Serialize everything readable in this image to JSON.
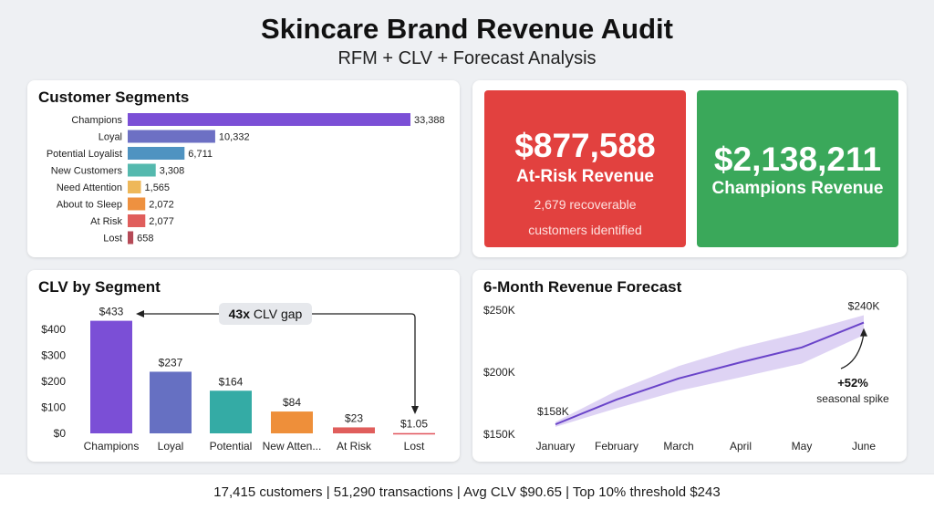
{
  "header": {
    "title": "Skincare Brand Revenue Audit",
    "subtitle": "RFM + CLV + Forecast Analysis"
  },
  "kpis": {
    "at_risk": {
      "value": "$877,588",
      "label": "At-Risk Revenue",
      "note_line1": "2,679 recoverable",
      "note_line2": "customers identified",
      "color": "#e2413f"
    },
    "champions": {
      "value": "$2,138,211",
      "label": "Champions Revenue",
      "color": "#3aa85a"
    }
  },
  "footer": {
    "text": "17,415 customers | 51,290 transactions | Avg CLV $90.65 | Top 10% threshold $243"
  },
  "chart_data": [
    {
      "type": "bar",
      "orientation": "horizontal",
      "title": "Customer Segments",
      "categories": [
        "Champions",
        "Loyal",
        "Potential Loyalist",
        "New Customers",
        "Need Attention",
        "About to Sleep",
        "At Risk",
        "Lost"
      ],
      "values": [
        33388,
        10332,
        6711,
        3308,
        1565,
        2072,
        2077,
        658
      ],
      "value_labels": [
        "33,388",
        "10,332",
        "6,711",
        "3,308",
        "1,565",
        "2,072",
        "2,077",
        "658"
      ],
      "colors": [
        "#7b4fd6",
        "#6d70c4",
        "#4f93c1",
        "#55b9ae",
        "#eeb85a",
        "#ee9140",
        "#e05e5c",
        "#b54a57"
      ],
      "grid": false
    },
    {
      "type": "bar",
      "title": "CLV by Segment",
      "categories": [
        "Champions",
        "Loyal",
        "Potential",
        "New Atten...",
        "At Risk",
        "Lost"
      ],
      "values": [
        433,
        237,
        164,
        84,
        23,
        1.05
      ],
      "value_labels": [
        "$433",
        "$237",
        "$164",
        "$84",
        "$23",
        "$1.05"
      ],
      "colors": [
        "#7b4fd6",
        "#6670c2",
        "#34aba5",
        "#ee8f3a",
        "#e05e5c",
        "#e0535a"
      ],
      "yticks": [
        "$0",
        "$100",
        "$200",
        "$300",
        "$400"
      ],
      "ylim": [
        0,
        470
      ],
      "annotation": {
        "bold": "43x",
        "text": " CLV gap"
      },
      "grid": false
    },
    {
      "type": "line",
      "title": "6-Month Revenue Forecast",
      "categories": [
        "January",
        "February",
        "March",
        "April",
        "May",
        "June"
      ],
      "values": [
        158000,
        178000,
        195000,
        208000,
        220000,
        240000
      ],
      "band_upper": [
        160000,
        185000,
        205000,
        220000,
        232000,
        246000
      ],
      "band_lower": [
        156000,
        171000,
        185000,
        196000,
        207000,
        230000
      ],
      "yticks": [
        "$150K",
        "$200K",
        "$250K"
      ],
      "ylim": [
        150000,
        250000
      ],
      "start_label": "$158K",
      "end_label": "$240K",
      "annotation": {
        "bold": "+52%",
        "text": "seasonal spike"
      },
      "line_color": "#6a44c9",
      "band_color": "#d8cbf2",
      "grid": false
    }
  ]
}
